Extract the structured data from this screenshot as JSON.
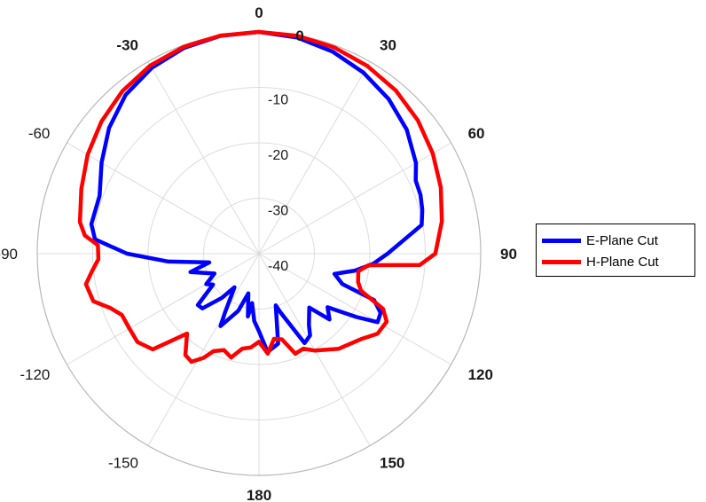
{
  "chart_data": {
    "type": "polar-line",
    "title": "",
    "r_ticks": [
      -10,
      -20,
      -30,
      -40
    ],
    "r_range": [
      -40,
      0
    ],
    "angle_ticks": [
      0,
      30,
      60,
      90,
      120,
      150,
      180,
      -150,
      -120,
      -90,
      -60,
      -30
    ],
    "angle_tick_labels": [
      "0",
      "30",
      "60",
      "90",
      "120",
      "150",
      "180",
      "-150",
      "-120",
      "-90",
      "-60",
      "-30"
    ],
    "angle_stray_label": "0",
    "grid": true,
    "legend": "right",
    "series": [
      {
        "name": "E-Plane Cut",
        "color": "#0000ff",
        "points": [
          [
            0,
            0
          ],
          [
            10,
            -0.4
          ],
          [
            20,
            -1.2
          ],
          [
            30,
            -2.3
          ],
          [
            40,
            -3.6
          ],
          [
            50,
            -5.2
          ],
          [
            60,
            -7.3
          ],
          [
            65,
            -8.8
          ],
          [
            70,
            -9.0
          ],
          [
            75,
            -9.5
          ],
          [
            80,
            -10.2
          ],
          [
            85,
            -14.0
          ],
          [
            90,
            -16.8
          ],
          [
            95,
            -19.3
          ],
          [
            100,
            -22.4
          ],
          [
            105,
            -25.9
          ],
          [
            110,
            -24.0
          ],
          [
            112,
            -17.6
          ],
          [
            116,
            -15.6
          ],
          [
            120,
            -15.3
          ],
          [
            123,
            -19.0
          ],
          [
            128,
            -24.3
          ],
          [
            133,
            -22.6
          ],
          [
            137,
            -26.7
          ],
          [
            145,
            -24.3
          ],
          [
            148,
            -22.6
          ],
          [
            153,
            -21.9
          ],
          [
            160,
            -28.8
          ],
          [
            162,
            -30.2
          ],
          [
            168,
            -23.4
          ],
          [
            175,
            -22.2
          ],
          [
            180,
            -26.0
          ],
          [
            184,
            -27.8
          ],
          [
            188,
            -31.0
          ],
          [
            190,
            -28.5
          ],
          [
            195,
            -32.6
          ],
          [
            200,
            -29.0
          ],
          [
            208,
            -25.2
          ],
          [
            210,
            -27.7
          ],
          [
            216,
            -32.5
          ],
          [
            220,
            -29.6
          ],
          [
            226,
            -25.8
          ],
          [
            230,
            -25.6
          ],
          [
            236,
            -30.0
          ],
          [
            240,
            -29.0
          ],
          [
            246,
            -31.2
          ],
          [
            255,
            -27.2
          ],
          [
            260,
            -30.9
          ],
          [
            265,
            -23.6
          ],
          [
            270,
            -16.2
          ],
          [
            275,
            -10.3
          ],
          [
            280,
            -9.3
          ],
          [
            290,
            -9.4
          ],
          [
            300,
            -7.2
          ],
          [
            310,
            -4.7
          ],
          [
            320,
            -2.6
          ],
          [
            330,
            -1.3
          ],
          [
            340,
            -0.5
          ],
          [
            350,
            -0.1
          ],
          [
            360,
            0
          ]
        ]
      },
      {
        "name": "H-Plane Cut",
        "color": "#ff0000",
        "points": [
          [
            0,
            0
          ],
          [
            10,
            -0.1
          ],
          [
            20,
            -0.4
          ],
          [
            30,
            -0.9
          ],
          [
            40,
            -1.6
          ],
          [
            50,
            -2.6
          ],
          [
            60,
            -3.8
          ],
          [
            70,
            -5.1
          ],
          [
            80,
            -6.5
          ],
          [
            85,
            -7.5
          ],
          [
            90,
            -8.2
          ],
          [
            94,
            -10.9
          ],
          [
            96,
            -20.1
          ],
          [
            100,
            -21.8
          ],
          [
            106,
            -21.4
          ],
          [
            110,
            -20.4
          ],
          [
            114,
            -15.5
          ],
          [
            118,
            -13.9
          ],
          [
            124,
            -14.2
          ],
          [
            130,
            -16.0
          ],
          [
            140,
            -17.6
          ],
          [
            150,
            -19.8
          ],
          [
            155,
            -21.1
          ],
          [
            160,
            -20.8
          ],
          [
            165,
            -24.0
          ],
          [
            170,
            -24.4
          ],
          [
            175,
            -21.9
          ],
          [
            180,
            -24.1
          ],
          [
            185,
            -23.0
          ],
          [
            190,
            -22.6
          ],
          [
            195,
            -20.6
          ],
          [
            200,
            -21.5
          ],
          [
            205,
            -20.6
          ],
          [
            208,
            -18.7
          ],
          [
            212,
            -17.0
          ],
          [
            216,
            -17.4
          ],
          [
            222,
            -20.6
          ],
          [
            228,
            -14.2
          ],
          [
            234,
            -12.9
          ],
          [
            240,
            -13.0
          ],
          [
            246,
            -12.9
          ],
          [
            250,
            -11.4
          ],
          [
            254,
            -8.9
          ],
          [
            260,
            -8.3
          ],
          [
            264,
            -9.7
          ],
          [
            268,
            -11.0
          ],
          [
            273,
            -10.9
          ],
          [
            276,
            -8.4
          ],
          [
            280,
            -7.2
          ],
          [
            290,
            -5.9
          ],
          [
            300,
            -4.3
          ],
          [
            310,
            -2.9
          ],
          [
            320,
            -1.7
          ],
          [
            330,
            -0.8
          ],
          [
            340,
            -0.3
          ],
          [
            350,
            -0.05
          ],
          [
            360,
            0
          ]
        ]
      }
    ]
  }
}
